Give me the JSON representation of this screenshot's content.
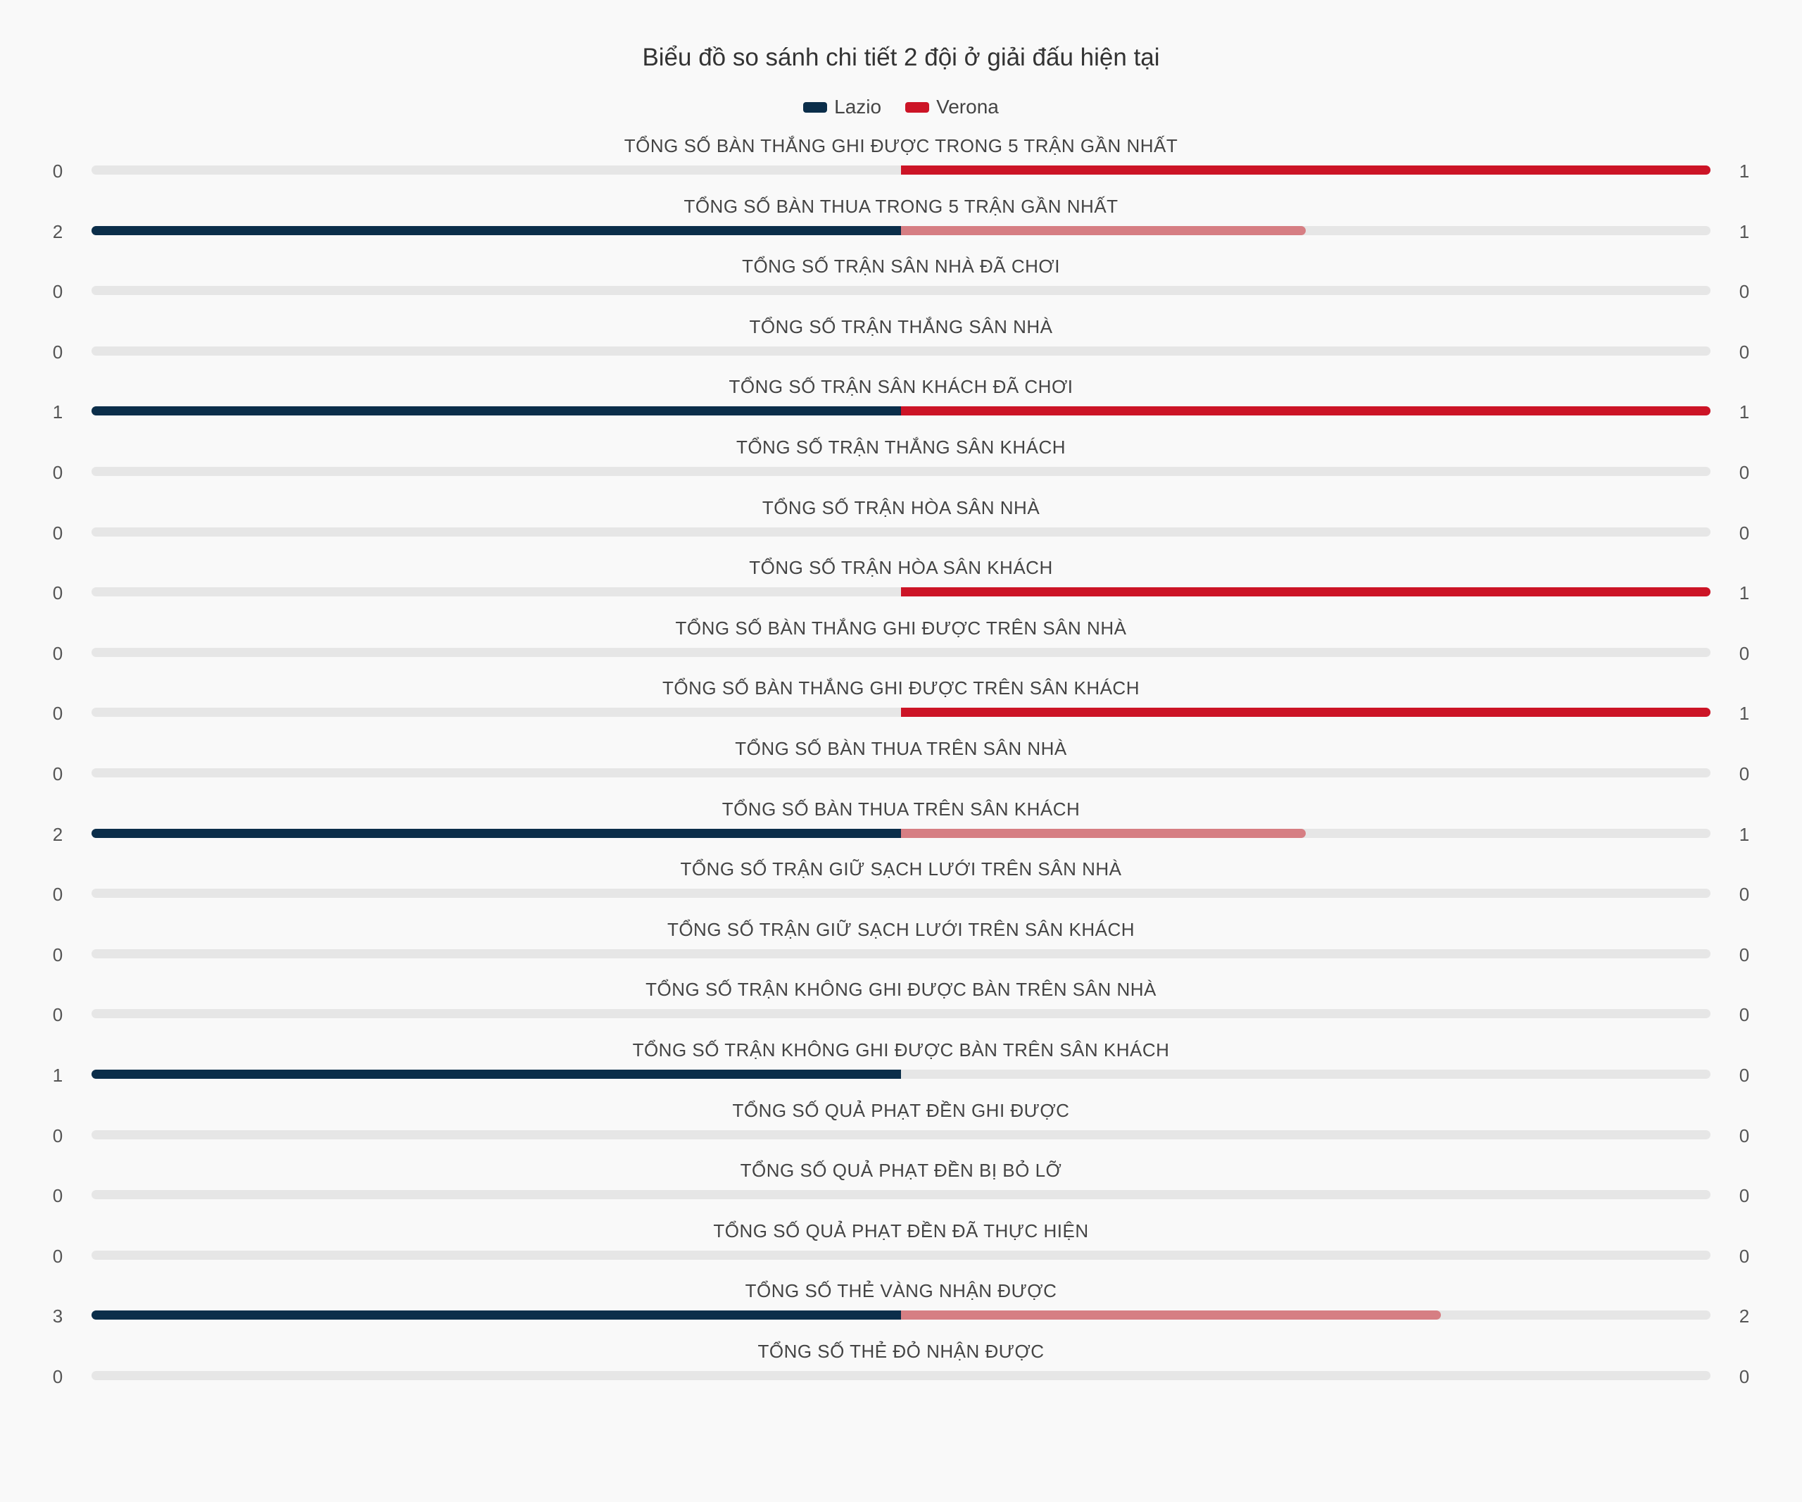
{
  "chart_data": {
    "type": "bar",
    "title": "Biểu đồ so sánh chi tiết 2 đội ở giải đấu hiện tại",
    "legend_position": "top",
    "series": [
      {
        "name": "Lazio",
        "color": "#0b2e4a"
      },
      {
        "name": "Verona",
        "color": "#cc1426",
        "faded_color": "#d67e83"
      }
    ],
    "track_color": "#e6e6e6",
    "categories": [
      "TỔNG SỐ BÀN THẮNG GHI ĐƯỢC TRONG 5 TRẬN GẦN NHẤT",
      "TỔNG SỐ BÀN THUA TRONG 5 TRẬN GẦN NHẤT",
      "TỔNG SỐ TRẬN SÂN NHÀ ĐÃ CHƠI",
      "TỔNG SỐ TRẬN THẮNG SÂN NHÀ",
      "TỔNG SỐ TRẬN SÂN KHÁCH ĐÃ CHƠI",
      "TỔNG SỐ TRẬN THẮNG SÂN KHÁCH",
      "TỔNG SỐ TRẬN HÒA SÂN NHÀ",
      "TỔNG SỐ TRẬN HÒA SÂN KHÁCH",
      "TỔNG SỐ BÀN THẮNG GHI ĐƯỢC TRÊN SÂN NHÀ",
      "TỔNG SỐ BÀN THẮNG GHI ĐƯỢC TRÊN SÂN KHÁCH",
      "TỔNG SỐ BÀN THUA TRÊN SÂN NHÀ",
      "TỔNG SỐ BÀN THUA TRÊN SÂN KHÁCH",
      "TỔNG SỐ TRẬN GIỮ SẠCH LƯỚI TRÊN SÂN NHÀ",
      "TỔNG SỐ TRẬN GIỮ SẠCH LƯỚI TRÊN SÂN KHÁCH",
      "TỔNG SỐ TRẬN KHÔNG GHI ĐƯỢC BÀN TRÊN SÂN NHÀ",
      "TỔNG SỐ TRẬN KHÔNG GHI ĐƯỢC BÀN TRÊN SÂN KHÁCH",
      "TỔNG SỐ QUẢ PHẠT ĐỀN GHI ĐƯỢC",
      "TỔNG SỐ QUẢ PHẠT ĐỀN BỊ BỎ LỠ",
      "TỔNG SỐ QUẢ PHẠT ĐỀN ĐÃ THỰC HIỆN",
      "TỔNG SỐ THẺ VÀNG NHẬN ĐƯỢC",
      "TỔNG SỐ THẺ ĐỎ NHẬN ĐƯỢC"
    ],
    "lazio_values": [
      0,
      2,
      0,
      0,
      1,
      0,
      0,
      0,
      0,
      0,
      0,
      2,
      0,
      0,
      0,
      1,
      0,
      0,
      0,
      3,
      0
    ],
    "verona_values": [
      1,
      1,
      0,
      0,
      1,
      0,
      0,
      1,
      0,
      1,
      0,
      1,
      0,
      0,
      0,
      0,
      0,
      0,
      0,
      2,
      0
    ]
  }
}
